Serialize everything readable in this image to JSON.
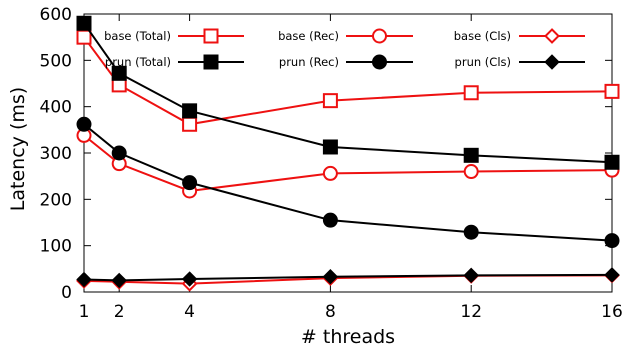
{
  "chart_data": {
    "type": "line",
    "title": "",
    "xlabel": "# threads",
    "ylabel": "Latency (ms)",
    "x": [
      1,
      2,
      4,
      8,
      12,
      16
    ],
    "xticks": [
      1,
      2,
      4,
      8,
      12,
      16
    ],
    "xlim": [
      1,
      16
    ],
    "ylim": [
      0,
      600
    ],
    "yticks": [
      0,
      100,
      200,
      300,
      400,
      500,
      600
    ],
    "grid": false,
    "legend_position": "top",
    "series": [
      {
        "name": "base (Total)",
        "color": "#ee1111",
        "marker": "square-open",
        "values": [
          550,
          447,
          362,
          413,
          430,
          433
        ]
      },
      {
        "name": "base (Rec)",
        "color": "#ee1111",
        "marker": "circle-open",
        "values": [
          338,
          277,
          218,
          256,
          260,
          263
        ]
      },
      {
        "name": "base (Cls)",
        "color": "#ee1111",
        "marker": "diamond-open",
        "values": [
          24,
          22,
          18,
          30,
          35,
          36
        ]
      },
      {
        "name": "prun (Total)",
        "color": "#000000",
        "marker": "square-filled",
        "values": [
          580,
          472,
          391,
          313,
          295,
          280
        ]
      },
      {
        "name": "prun (Rec)",
        "color": "#000000",
        "marker": "circle-filled",
        "values": [
          362,
          300,
          236,
          155,
          129,
          111
        ]
      },
      {
        "name": "prun (Cls)",
        "color": "#000000",
        "marker": "diamond-filled",
        "values": [
          27,
          25,
          28,
          33,
          36,
          37
        ]
      }
    ]
  }
}
